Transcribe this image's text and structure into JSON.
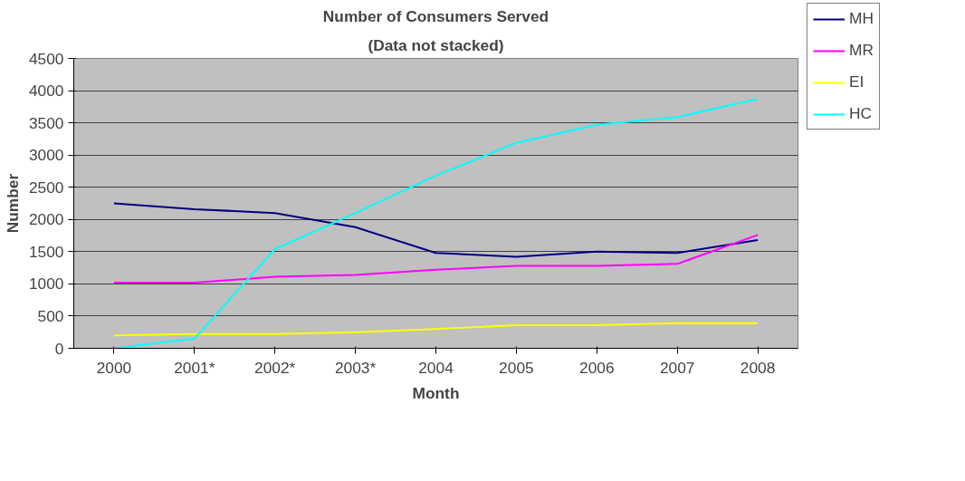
{
  "chart_data": {
    "type": "line",
    "title": "Number of Consumers Served",
    "subtitle": "(Data not stacked)",
    "xlabel": "Month",
    "ylabel": "Number",
    "categories": [
      "2000",
      "2001*",
      "2002*",
      "2003*",
      "2004",
      "2005",
      "2006",
      "2007",
      "2008"
    ],
    "series": [
      {
        "name": "MH",
        "color": "#000080",
        "values": [
          2250,
          2160,
          2100,
          1880,
          1480,
          1420,
          1500,
          1480,
          1680
        ]
      },
      {
        "name": "MR",
        "color": "#ff00ff",
        "values": [
          1020,
          1020,
          1110,
          1140,
          1220,
          1280,
          1280,
          1310,
          1760
        ]
      },
      {
        "name": "EI",
        "color": "#ffff00",
        "values": [
          200,
          220,
          220,
          250,
          300,
          360,
          360,
          390,
          390
        ]
      },
      {
        "name": "HC",
        "color": "#00ffff",
        "values": [
          0,
          150,
          1540,
          2100,
          2680,
          3190,
          3470,
          3590,
          3870
        ]
      }
    ],
    "ylim": [
      0,
      4500
    ],
    "yticks": [
      0,
      500,
      1000,
      1500,
      2000,
      2500,
      3000,
      3500,
      4000,
      4500
    ],
    "grid": "y",
    "legend": "right",
    "marker": "none",
    "line_style": "solid"
  }
}
